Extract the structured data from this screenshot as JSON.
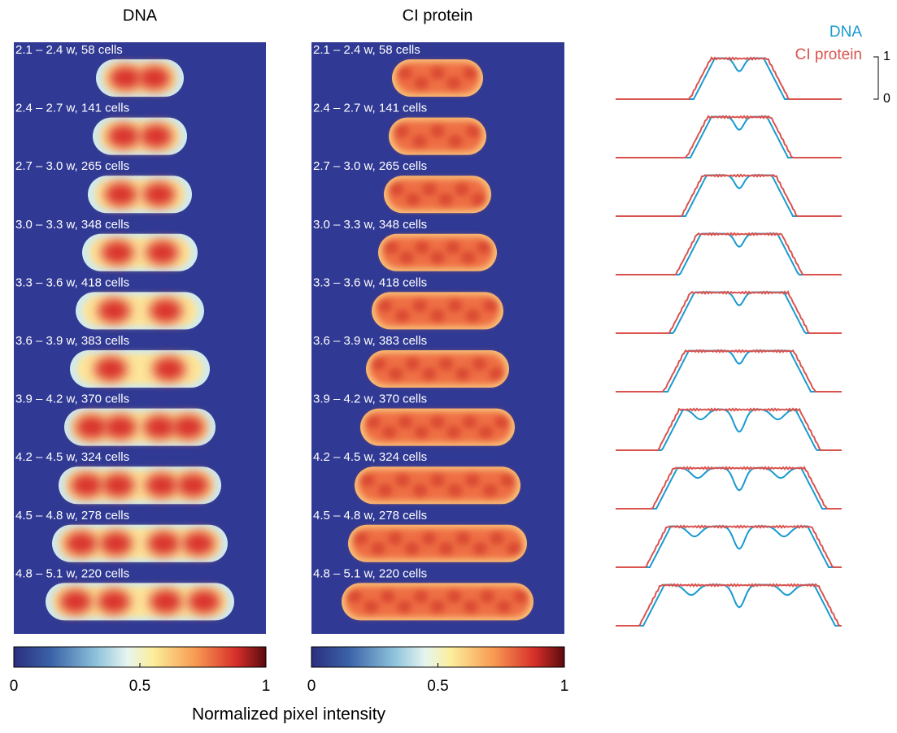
{
  "panels": [
    {
      "title": "DNA",
      "rows": [
        "2.1 – 2.4 w, 58 cells",
        "2.4 – 2.7 w, 141 cells",
        "2.7 – 3.0 w, 265 cells",
        "3.0 – 3.3 w, 348 cells",
        "3.3 – 3.6 w, 418 cells",
        "3.6 – 3.9 w, 383 cells",
        "3.9 – 4.2 w, 370 cells",
        "4.2 – 4.5 w, 324 cells",
        "4.5 – 4.8 w, 278 cells",
        "4.8 – 5.1 w, 220 cells"
      ],
      "colorbar_ticks": [
        0,
        0.5,
        1
      ]
    },
    {
      "title": "CI protein",
      "rows": [
        "2.1 – 2.4 w, 58 cells",
        "2.4 – 2.7 w, 141 cells",
        "2.7 – 3.0 w, 265 cells",
        "3.0 – 3.3 w, 348 cells",
        "3.3 – 3.6 w, 418 cells",
        "3.6 – 3.9 w, 383 cells",
        "3.9 – 4.2 w, 370 cells",
        "4.2 – 4.5 w, 324 cells",
        "4.5 – 4.8 w, 278 cells",
        "4.8 – 5.1 w, 220 cells"
      ],
      "colorbar_ticks": [
        0,
        0.5,
        1
      ]
    }
  ],
  "colorbar_label": "Normalized pixel intensity",
  "legend": [
    {
      "name": "DNA",
      "color": "#1a9ad0"
    },
    {
      "name": "CI protein",
      "color": "#d9534f"
    }
  ],
  "scale_bar": [
    1,
    0
  ]
}
